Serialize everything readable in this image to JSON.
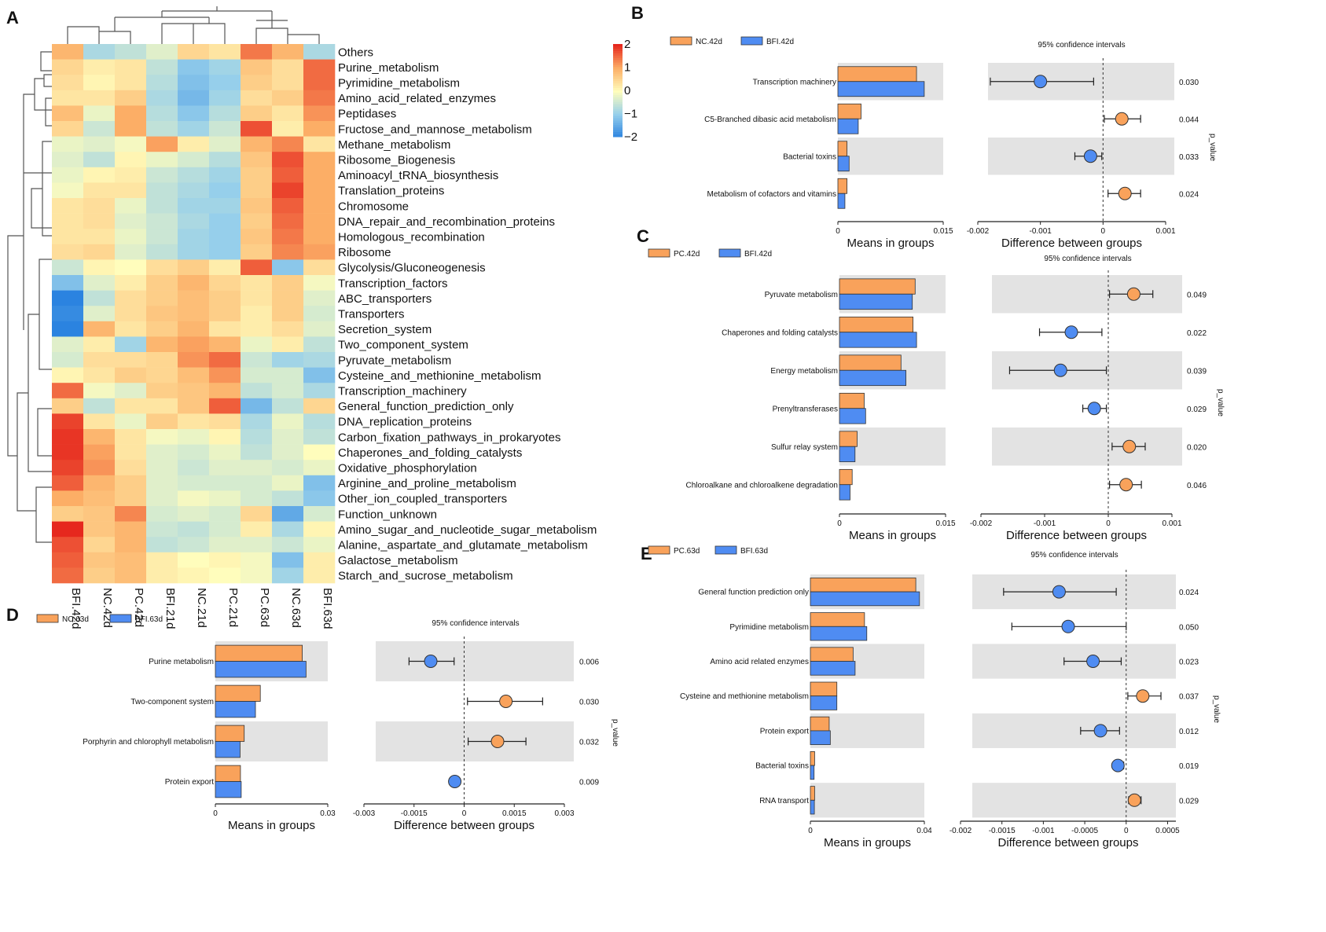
{
  "colors": {
    "orange": "#f9a25b",
    "blue": "#4f8cf2",
    "band": "#e3e3e3",
    "axis": "#222222"
  },
  "chart_data": [
    {
      "panel": "A",
      "type": "heatmap",
      "columns": [
        "BFI.42d",
        "NC.42d",
        "PC.42d",
        "BFI.21d",
        "NC.21d",
        "PC.21d",
        "PC.63d",
        "NC.63d",
        "BFI.63d"
      ],
      "rows": [
        {
          "name": "Others",
          "values": [
            0.9,
            -0.8,
            -0.6,
            -0.3,
            0.5,
            0.3,
            1.4,
            0.9,
            -0.8
          ]
        },
        {
          "name": "Purine_metabolism",
          "values": [
            0.5,
            0.2,
            0.3,
            -0.6,
            -1.1,
            -0.9,
            0.7,
            0.4,
            1.5
          ]
        },
        {
          "name": "Pyrimidine_metabolism",
          "values": [
            0.4,
            0.1,
            0.3,
            -0.7,
            -1.2,
            -1.0,
            0.6,
            0.4,
            1.5
          ]
        },
        {
          "name": "Amino_acid_related_enzymes",
          "values": [
            0.3,
            0.3,
            0.6,
            -0.8,
            -1.3,
            -0.9,
            0.4,
            0.6,
            1.4
          ]
        },
        {
          "name": "Peptidases",
          "values": [
            0.8,
            -0.2,
            1.0,
            -0.7,
            -1.1,
            -0.7,
            0.6,
            0.3,
            1.2
          ]
        },
        {
          "name": "Fructose_and_mannose_metabolism",
          "values": [
            0.5,
            -0.5,
            1.0,
            -0.6,
            -0.9,
            -0.5,
            1.7,
            0.2,
            1.0
          ]
        },
        {
          "name": "Methane_metabolism",
          "values": [
            -0.2,
            -0.3,
            -0.1,
            1.1,
            0.2,
            -0.3,
            0.9,
            1.3,
            0.3
          ]
        },
        {
          "name": "Ribosome_Biogenesis",
          "values": [
            -0.3,
            -0.6,
            0.1,
            -0.2,
            -0.4,
            -0.7,
            0.7,
            1.7,
            1.0
          ]
        },
        {
          "name": "Aminoacyl_tRNA_biosynthesis",
          "values": [
            -0.2,
            0.1,
            0.2,
            -0.5,
            -0.7,
            -0.9,
            0.6,
            1.6,
            1.0
          ]
        },
        {
          "name": "Translation_proteins",
          "values": [
            -0.1,
            0.3,
            0.3,
            -0.6,
            -0.8,
            -1.0,
            0.6,
            1.8,
            1.0
          ]
        },
        {
          "name": "Chromosome",
          "values": [
            0.3,
            0.4,
            -0.2,
            -0.6,
            -0.9,
            -0.9,
            0.7,
            1.6,
            1.0
          ]
        },
        {
          "name": "DNA_repair_and_recombination_proteins",
          "values": [
            0.3,
            0.4,
            -0.3,
            -0.5,
            -0.8,
            -1.0,
            0.6,
            1.5,
            1.0
          ]
        },
        {
          "name": "Homologous_recombination",
          "values": [
            0.3,
            0.3,
            -0.2,
            -0.5,
            -0.9,
            -1.0,
            0.7,
            1.4,
            1.0
          ]
        },
        {
          "name": "Ribosome",
          "values": [
            0.4,
            0.5,
            -0.3,
            -0.6,
            -0.9,
            -1.0,
            0.6,
            1.3,
            1.1
          ]
        },
        {
          "name": "Glycolysis/Gluconeogenesis",
          "values": [
            -0.5,
            0.1,
            0.0,
            0.4,
            0.6,
            0.2,
            1.6,
            -1.1,
            0.4
          ]
        },
        {
          "name": "Transcription_factors",
          "values": [
            -1.2,
            -0.3,
            0.2,
            0.6,
            0.9,
            0.5,
            0.3,
            0.6,
            -0.1
          ]
        },
        {
          "name": "ABC_transporters",
          "values": [
            -2.0,
            -0.6,
            0.4,
            0.6,
            0.8,
            0.6,
            0.3,
            0.6,
            -0.3
          ]
        },
        {
          "name": "Transporters",
          "values": [
            -1.9,
            -0.3,
            0.4,
            0.7,
            0.8,
            0.6,
            0.2,
            0.6,
            -0.4
          ]
        },
        {
          "name": "Secretion_system",
          "values": [
            -2.0,
            0.9,
            0.3,
            0.6,
            0.9,
            0.3,
            0.2,
            0.4,
            -0.3
          ]
        },
        {
          "name": "Two_component_system",
          "values": [
            -0.3,
            0.2,
            -0.9,
            0.9,
            1.1,
            0.9,
            -0.2,
            0.2,
            -0.6
          ]
        },
        {
          "name": "Pyruvate_metabolism",
          "values": [
            -0.4,
            0.4,
            0.4,
            0.5,
            1.2,
            1.5,
            -0.5,
            -0.9,
            -0.8
          ]
        },
        {
          "name": "Cysteine_and_methionine_metabolism",
          "values": [
            0.1,
            0.3,
            0.6,
            0.5,
            0.8,
            1.2,
            -0.4,
            -0.4,
            -1.2
          ]
        },
        {
          "name": "Transcription_machinery",
          "values": [
            1.5,
            -0.1,
            -0.3,
            0.6,
            0.7,
            0.9,
            -0.6,
            -0.4,
            -0.8
          ]
        },
        {
          "name": "General_function_prediction_only",
          "values": [
            0.6,
            -0.6,
            0.3,
            0.3,
            0.7,
            1.6,
            -1.3,
            -0.6,
            0.5
          ]
        },
        {
          "name": "DNA_replication_proteins",
          "values": [
            1.8,
            0.3,
            -0.2,
            0.6,
            0.3,
            0.4,
            -0.8,
            -0.2,
            -0.7
          ]
        },
        {
          "name": "Carbon_fixation_pathways_in_prokaryotes",
          "values": [
            1.9,
            0.9,
            0.3,
            -0.1,
            -0.2,
            0.1,
            -0.7,
            -0.3,
            -0.6
          ]
        },
        {
          "name": "Chaperones_and_folding_catalysts",
          "values": [
            1.9,
            1.1,
            0.3,
            -0.3,
            -0.4,
            -0.2,
            -0.6,
            -0.3,
            0.0
          ]
        },
        {
          "name": "Oxidative_phosphorylation",
          "values": [
            1.8,
            1.2,
            0.4,
            -0.3,
            -0.5,
            -0.3,
            -0.3,
            -0.4,
            -0.2
          ]
        },
        {
          "name": "Arginine_and_proline_metabolism",
          "values": [
            1.6,
            0.9,
            0.6,
            -0.3,
            -0.4,
            -0.4,
            -0.4,
            -0.2,
            -1.2
          ]
        },
        {
          "name": "Other_ion_coupled_transporters",
          "values": [
            1.0,
            0.8,
            0.6,
            -0.3,
            -0.1,
            -0.2,
            -0.4,
            -0.6,
            -1.1
          ]
        },
        {
          "name": "Function_unknown",
          "values": [
            0.6,
            0.7,
            1.3,
            -0.4,
            -0.3,
            -0.4,
            0.5,
            -1.5,
            -0.4
          ]
        },
        {
          "name": "Amino_sugar_and_nucleotide_sugar_metabolism",
          "values": [
            2.0,
            0.7,
            0.9,
            -0.5,
            -0.6,
            -0.4,
            0.2,
            -0.8,
            0.1
          ]
        },
        {
          "name": "Alanine,_aspartate_and_glutamate_metabolism",
          "values": [
            1.7,
            0.5,
            0.9,
            -0.6,
            -0.5,
            -0.3,
            -0.3,
            -0.5,
            -0.2
          ]
        },
        {
          "name": "Galactose_metabolism",
          "values": [
            1.6,
            0.7,
            0.8,
            0.2,
            0.0,
            0.1,
            -0.1,
            -1.2,
            0.2
          ]
        },
        {
          "name": "Starch_and_sucrose_metabolism",
          "values": [
            1.5,
            0.6,
            0.8,
            0.2,
            0.1,
            0.0,
            -0.1,
            -0.9,
            0.2
          ]
        }
      ],
      "color_scale": {
        "ticks": [
          2,
          1,
          0,
          -1,
          -2
        ],
        "range": [
          -2,
          2
        ],
        "labels": [
          "2",
          "1",
          "0",
          "−1",
          "−2"
        ]
      }
    },
    {
      "panel": "B",
      "type": "bar",
      "legend": [
        "NC.42d",
        "BFI.42d"
      ],
      "ci_title": "95% confidence intervals",
      "p_label": "p_value",
      "bar_xlabel": "Means in groups",
      "diff_xlabel": "Difference between groups",
      "bar_xlim": [
        0,
        0.015
      ],
      "bar_ticks": [
        0,
        0.015
      ],
      "bar_tick_labels": [
        "0",
        "0.015"
      ],
      "diff_xlim": [
        -0.002,
        0.001
      ],
      "diff_ticks": [
        -0.002,
        -0.001,
        0,
        0.001
      ],
      "diff_tick_labels": [
        "-0.002",
        "-0.001",
        "0",
        "0.001"
      ],
      "features": [
        {
          "name": "Transcription machinery",
          "a": 0.0112,
          "b": 0.0123,
          "diff": -0.001,
          "lo": -0.0018,
          "hi": -0.00015,
          "p": "0.030"
        },
        {
          "name": "C5-Branched dibasic acid metabolism",
          "a": 0.0033,
          "b": 0.0029,
          "diff": 0.0003,
          "lo": 2e-05,
          "hi": 0.0006,
          "p": "0.044"
        },
        {
          "name": "Bacterial toxins",
          "a": 0.0013,
          "b": 0.0016,
          "diff": -0.0002,
          "lo": -0.00045,
          "hi": -2e-05,
          "p": "0.033"
        },
        {
          "name": "Metabolism of cofactors and vitamins",
          "a": 0.0013,
          "b": 0.001,
          "diff": 0.00035,
          "lo": 8e-05,
          "hi": 0.0006,
          "p": "0.024"
        }
      ]
    },
    {
      "panel": "C",
      "type": "bar",
      "legend": [
        "PC.42d",
        "BFI.42d"
      ],
      "ci_title": "95% confidence intervals",
      "p_label": "p_value",
      "bar_xlabel": "Means in groups",
      "diff_xlabel": "Difference between groups",
      "bar_xlim": [
        0,
        0.015
      ],
      "bar_ticks": [
        0,
        0.015
      ],
      "bar_tick_labels": [
        "0",
        "0.015"
      ],
      "diff_xlim": [
        -0.002,
        0.001
      ],
      "diff_ticks": [
        -0.002,
        -0.001,
        0,
        0.001
      ],
      "diff_tick_labels": [
        "-0.002",
        "-0.001",
        "0",
        "0.001"
      ],
      "features": [
        {
          "name": "Pyruvate metabolism",
          "a": 0.0107,
          "b": 0.0103,
          "diff": 0.0004,
          "lo": 2e-05,
          "hi": 0.0007,
          "p": "0.049"
        },
        {
          "name": "Chaperones and folding catalysts",
          "a": 0.0104,
          "b": 0.0109,
          "diff": -0.00058,
          "lo": -0.00108,
          "hi": -0.0001,
          "p": "0.022"
        },
        {
          "name": "Energy metabolism",
          "a": 0.0087,
          "b": 0.0094,
          "diff": -0.00075,
          "lo": -0.00155,
          "hi": -3e-05,
          "p": "0.039"
        },
        {
          "name": "Prenyltransferases",
          "a": 0.0035,
          "b": 0.0037,
          "diff": -0.00022,
          "lo": -0.0004,
          "hi": -3e-05,
          "p": "0.029"
        },
        {
          "name": "Sulfur relay system",
          "a": 0.0025,
          "b": 0.0022,
          "diff": 0.00033,
          "lo": 6e-05,
          "hi": 0.00058,
          "p": "0.020"
        },
        {
          "name": "Chloroalkane and chloroalkene degradation",
          "a": 0.0018,
          "b": 0.0015,
          "diff": 0.00028,
          "lo": 2e-05,
          "hi": 0.00052,
          "p": "0.046"
        }
      ]
    },
    {
      "panel": "D",
      "type": "bar",
      "legend": [
        "NC.63d",
        "BFI.63d"
      ],
      "ci_title": "95% confidence intervals",
      "p_label": "p_value",
      "bar_xlabel": "Means in groups",
      "diff_xlabel": "Difference between groups",
      "bar_xlim": [
        0,
        0.03
      ],
      "bar_ticks": [
        0,
        0.03
      ],
      "bar_tick_labels": [
        "0",
        "0.03"
      ],
      "diff_xlim": [
        -0.003,
        0.003
      ],
      "diff_ticks": [
        -0.003,
        -0.0015,
        0,
        0.0015,
        0.003
      ],
      "diff_tick_labels": [
        "-0.003",
        "-0.0015",
        "0",
        "0.0015",
        "0.003"
      ],
      "features": [
        {
          "name": "Purine metabolism",
          "a": 0.0232,
          "b": 0.0242,
          "diff": -0.001,
          "lo": -0.00165,
          "hi": -0.0003,
          "p": "0.006"
        },
        {
          "name": "Two-component system",
          "a": 0.012,
          "b": 0.0107,
          "diff": 0.00125,
          "lo": 0.0001,
          "hi": 0.00235,
          "p": "0.030"
        },
        {
          "name": "Porphyrin and chlorophyll metabolism",
          "a": 0.0077,
          "b": 0.0066,
          "diff": 0.001,
          "lo": 0.00012,
          "hi": 0.00185,
          "p": "0.032"
        },
        {
          "name": "Protein export",
          "a": 0.0067,
          "b": 0.0069,
          "diff": -0.00028,
          "lo": -0.0004,
          "hi": -0.00015,
          "p": "0.009"
        }
      ]
    },
    {
      "panel": "E",
      "type": "bar",
      "legend": [
        "PC.63d",
        "BFI.63d"
      ],
      "ci_title": "95% confidence intervals",
      "p_label": "p_value",
      "bar_xlabel": "Means in groups",
      "diff_xlabel": "Difference between groups",
      "bar_xlim": [
        0,
        0.04
      ],
      "bar_ticks": [
        0,
        0.04
      ],
      "bar_tick_labels": [
        "0",
        "0.04"
      ],
      "diff_xlim": [
        -0.002,
        0.0006
      ],
      "diff_ticks": [
        -0.002,
        -0.0015,
        -0.001,
        -0.0005,
        0,
        0.0005
      ],
      "diff_tick_labels": [
        "-0.002",
        "-0.0015",
        "-0.001",
        "-0.0005",
        "0",
        "0.0005"
      ],
      "features": [
        {
          "name": "General function prediction only",
          "a": 0.037,
          "b": 0.0383,
          "diff": -0.00081,
          "lo": -0.00148,
          "hi": -0.00012,
          "p": "0.024"
        },
        {
          "name": "Pyrimidine metabolism",
          "a": 0.019,
          "b": 0.0198,
          "diff": -0.0007,
          "lo": -0.00138,
          "hi": 0.0,
          "p": "0.050"
        },
        {
          "name": "Amino acid related enzymes",
          "a": 0.015,
          "b": 0.0157,
          "diff": -0.0004,
          "lo": -0.00075,
          "hi": -6e-05,
          "p": "0.023"
        },
        {
          "name": "Cysteine and methionine metabolism",
          "a": 0.0093,
          "b": 0.0093,
          "diff": 0.0002,
          "lo": 2e-05,
          "hi": 0.00042,
          "p": "0.037"
        },
        {
          "name": "Protein export",
          "a": 0.0066,
          "b": 0.007,
          "diff": -0.00031,
          "lo": -0.00055,
          "hi": -8e-05,
          "p": "0.012"
        },
        {
          "name": "Bacterial toxins",
          "a": 0.0015,
          "b": 0.0013,
          "diff": -0.0001,
          "lo": -0.00015,
          "hi": -3e-05,
          "p": "0.019"
        },
        {
          "name": "RNA transport",
          "a": 0.0015,
          "b": 0.0014,
          "diff": 0.0001,
          "lo": 3e-05,
          "hi": 0.00018,
          "p": "0.029"
        }
      ]
    }
  ]
}
